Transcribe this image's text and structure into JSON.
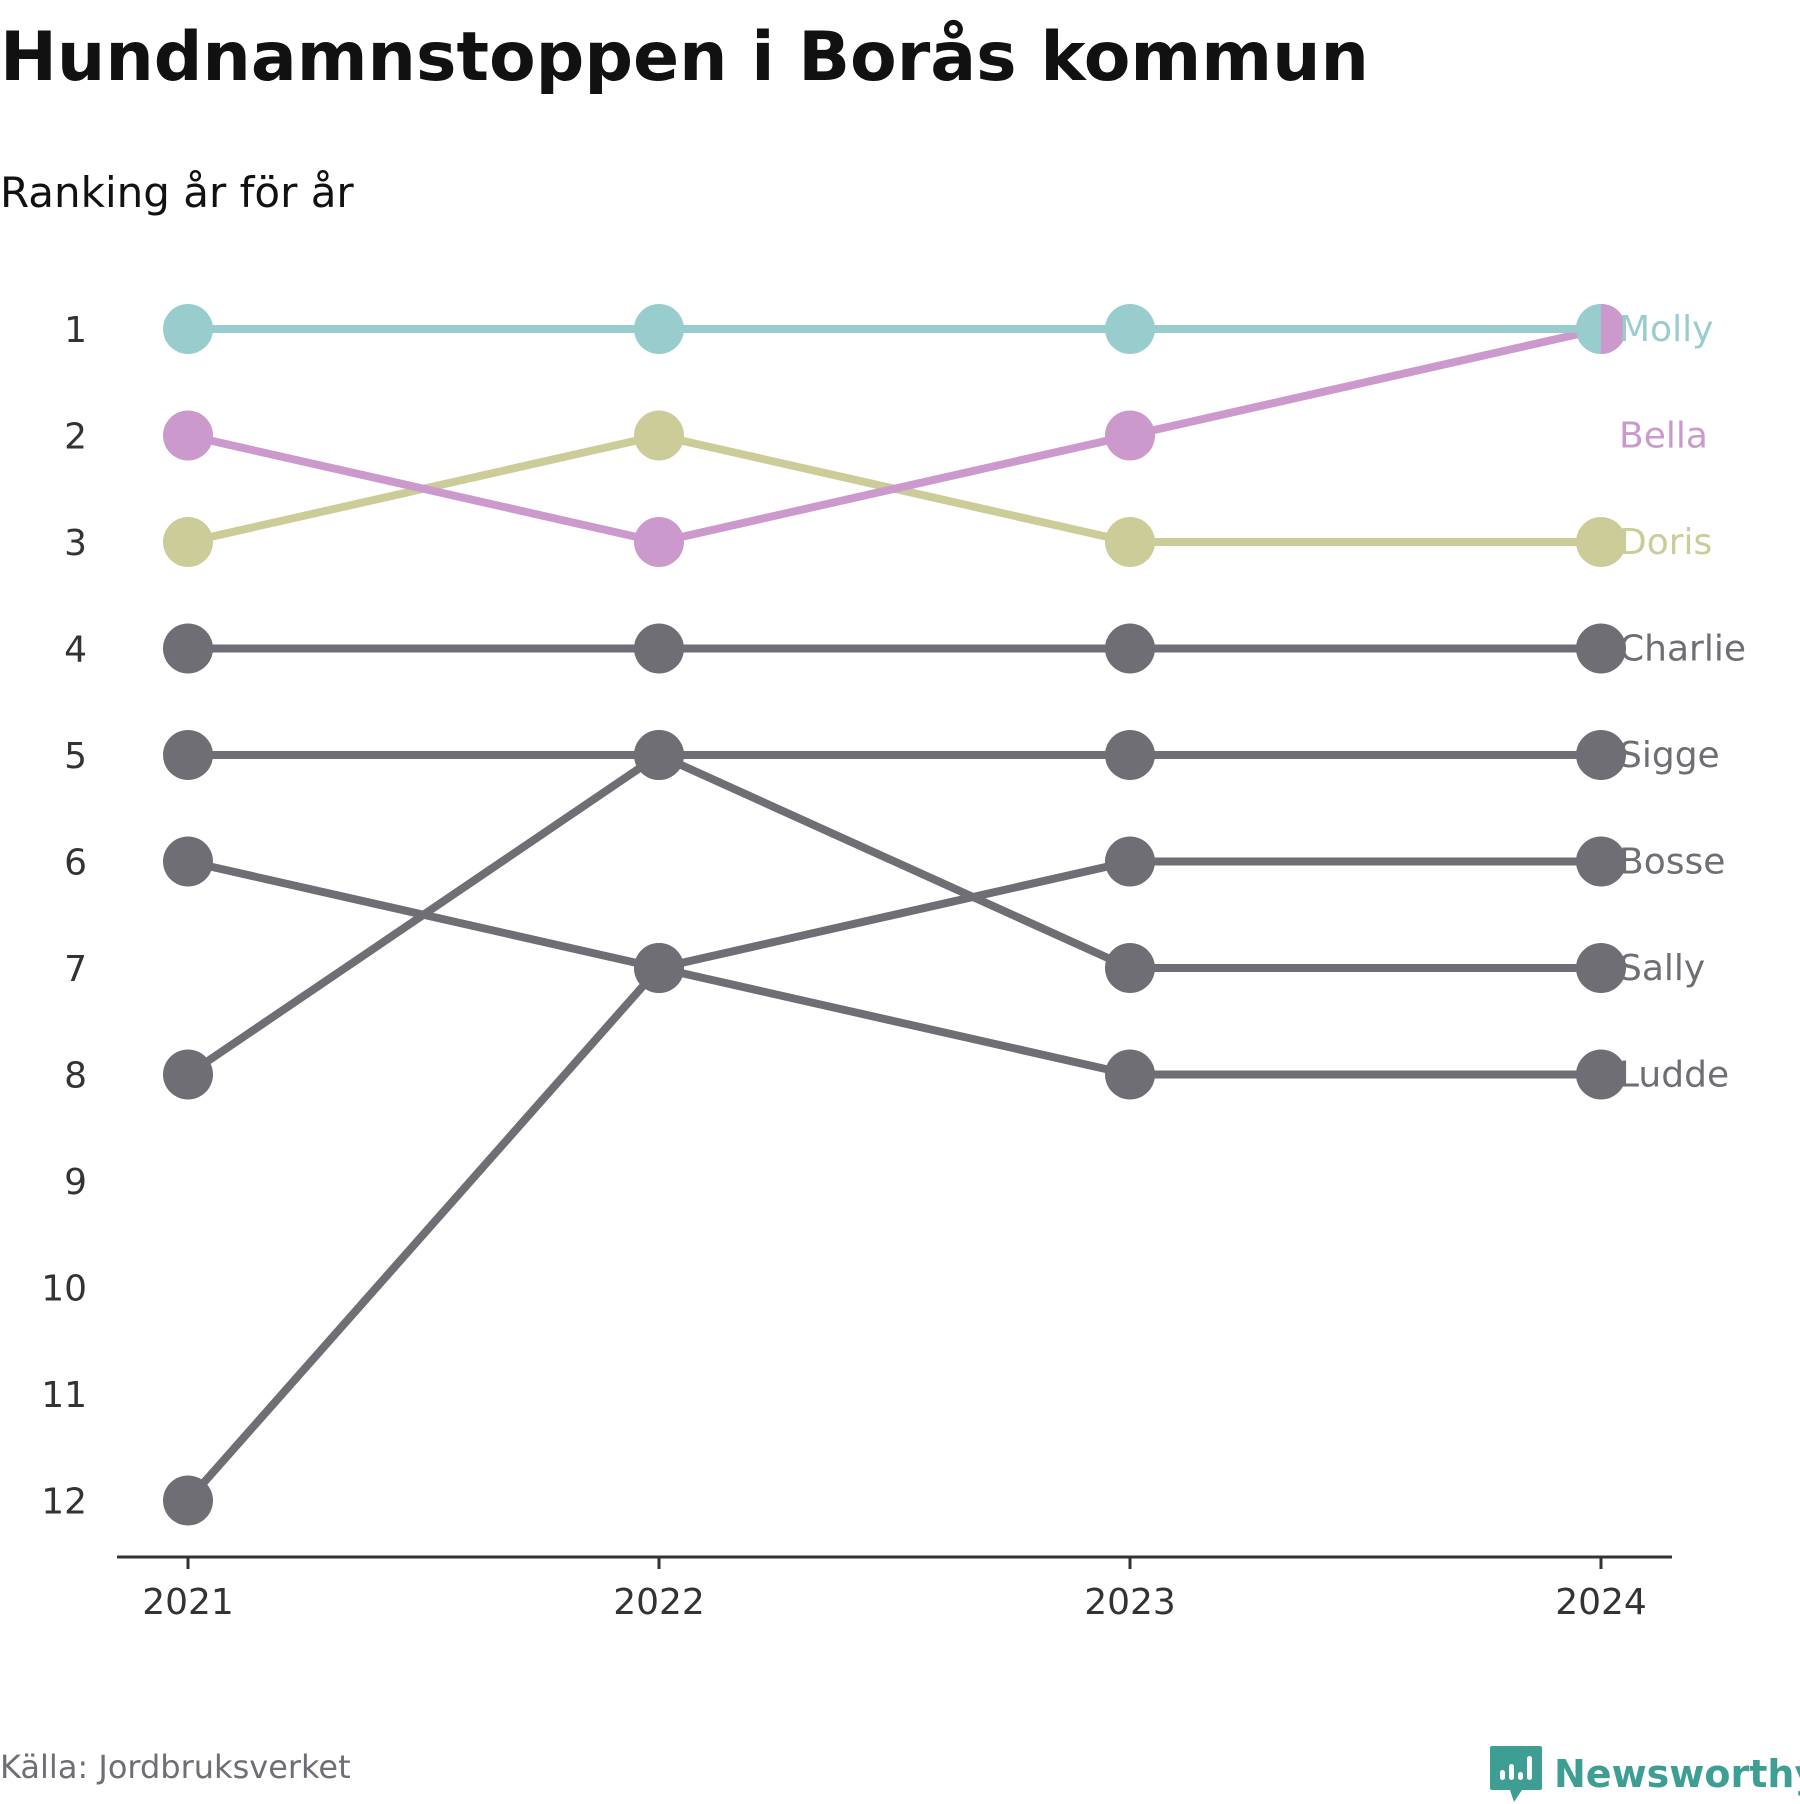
{
  "title": "Hundnamnstoppen i Borås kommun",
  "subtitle": "Ranking år för år",
  "source": "Källa: Jordbruksverket",
  "brand": {
    "name": "Newsworthy",
    "icon": "newsworthy-logo-icon",
    "color": "#3e9e94"
  },
  "chart_data": {
    "type": "line",
    "chart_kind": "bump",
    "x": [
      "2021",
      "2022",
      "2023",
      "2024"
    ],
    "y_ticks": [
      "1",
      "2",
      "3",
      "4",
      "5",
      "6",
      "7",
      "8",
      "9",
      "10",
      "11",
      "12"
    ],
    "ylim": [
      1,
      12
    ],
    "y_reversed": true,
    "grid": false,
    "series": [
      {
        "name": "Molly",
        "ranks": [
          1,
          1,
          1,
          1
        ],
        "color": "#99cccc",
        "label_color": "#99cccc"
      },
      {
        "name": "Bella",
        "ranks": [
          2,
          3,
          2,
          1
        ],
        "color": "#cc99cc",
        "label_color": "#cc99cc"
      },
      {
        "name": "Doris",
        "ranks": [
          3,
          2,
          3,
          3
        ],
        "color": "#cccc99",
        "label_color": "#cccc99"
      },
      {
        "name": "Charlie",
        "ranks": [
          4,
          4,
          4,
          4
        ],
        "color": "#6e6e74",
        "label_color": "#6e6e74"
      },
      {
        "name": "Sigge",
        "ranks": [
          5,
          5,
          5,
          5
        ],
        "color": "#6e6e74",
        "label_color": "#6e6e74"
      },
      {
        "name": "Bosse",
        "ranks": [
          12,
          7,
          6,
          6
        ],
        "color": "#6e6e74",
        "label_color": "#6e6e74"
      },
      {
        "name": "Sally",
        "ranks": [
          8,
          5,
          7,
          7
        ],
        "color": "#6e6e74",
        "label_color": "#6e6e74"
      },
      {
        "name": "Ludde",
        "ranks": [
          6,
          7,
          8,
          8
        ],
        "color": "#6e6e74",
        "label_color": "#6e6e74"
      }
    ]
  }
}
